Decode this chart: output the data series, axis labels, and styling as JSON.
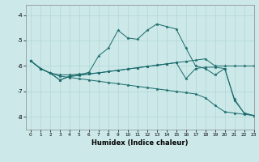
{
  "title": "",
  "xlabel": "Humidex (Indice chaleur)",
  "ylabel": "",
  "background_color": "#cce8e8",
  "line_color": "#1a6b6b",
  "xlim": [
    -0.5,
    23
  ],
  "ylim": [
    -8.5,
    -3.6
  ],
  "yticks": [
    -8,
    -7,
    -6,
    -5,
    -4
  ],
  "xticks": [
    0,
    1,
    2,
    3,
    4,
    5,
    6,
    7,
    8,
    9,
    10,
    11,
    12,
    13,
    14,
    15,
    16,
    17,
    18,
    19,
    20,
    21,
    22,
    23
  ],
  "series": [
    {
      "x": [
        0,
        1,
        2,
        3,
        4,
        5,
        6,
        7,
        8,
        9,
        10,
        11,
        12,
        13,
        14,
        15,
        16,
        17,
        18,
        19,
        20,
        21,
        22,
        23
      ],
      "y": [
        -5.8,
        -6.1,
        -6.28,
        -6.35,
        -6.35,
        -6.32,
        -6.3,
        -6.27,
        -6.22,
        -6.17,
        -6.12,
        -6.07,
        -6.02,
        -5.97,
        -5.92,
        -5.87,
        -5.82,
        -5.77,
        -5.72,
        -6.0,
        -6.0,
        -6.0,
        -6.0,
        -6.0
      ]
    },
    {
      "x": [
        0,
        1,
        2,
        3,
        4,
        5,
        6,
        7,
        8,
        9,
        10,
        11,
        12,
        13,
        14,
        15,
        16,
        17,
        18,
        19,
        20,
        21,
        22,
        23
      ],
      "y": [
        -5.8,
        -6.1,
        -6.28,
        -6.4,
        -6.45,
        -6.5,
        -6.55,
        -6.6,
        -6.65,
        -6.7,
        -6.75,
        -6.8,
        -6.85,
        -6.9,
        -6.95,
        -7.0,
        -7.05,
        -7.1,
        -7.25,
        -7.55,
        -7.8,
        -7.85,
        -7.9,
        -7.95
      ]
    },
    {
      "x": [
        0,
        1,
        2,
        3,
        4,
        5,
        6,
        7,
        8,
        9,
        10,
        11,
        12,
        13,
        14,
        15,
        16,
        17,
        18,
        19,
        20,
        21,
        22,
        23
      ],
      "y": [
        -5.8,
        -6.1,
        -6.28,
        -6.55,
        -6.4,
        -6.35,
        -6.25,
        -5.6,
        -5.3,
        -4.6,
        -4.9,
        -4.95,
        -4.6,
        -4.35,
        -4.45,
        -4.55,
        -5.3,
        -6.0,
        -6.1,
        -6.35,
        -6.1,
        -7.3,
        -7.85,
        -7.95
      ]
    },
    {
      "x": [
        0,
        1,
        2,
        3,
        4,
        5,
        6,
        7,
        8,
        9,
        10,
        11,
        12,
        13,
        14,
        15,
        16,
        17,
        18,
        19,
        20,
        21,
        22,
        23
      ],
      "y": [
        -5.8,
        -6.1,
        -6.28,
        -6.55,
        -6.42,
        -6.37,
        -6.32,
        -6.27,
        -6.22,
        -6.17,
        -6.12,
        -6.07,
        -6.02,
        -5.97,
        -5.92,
        -5.87,
        -6.5,
        -6.1,
        -6.05,
        -6.05,
        -6.1,
        -7.35,
        -7.85,
        -7.95
      ]
    }
  ]
}
